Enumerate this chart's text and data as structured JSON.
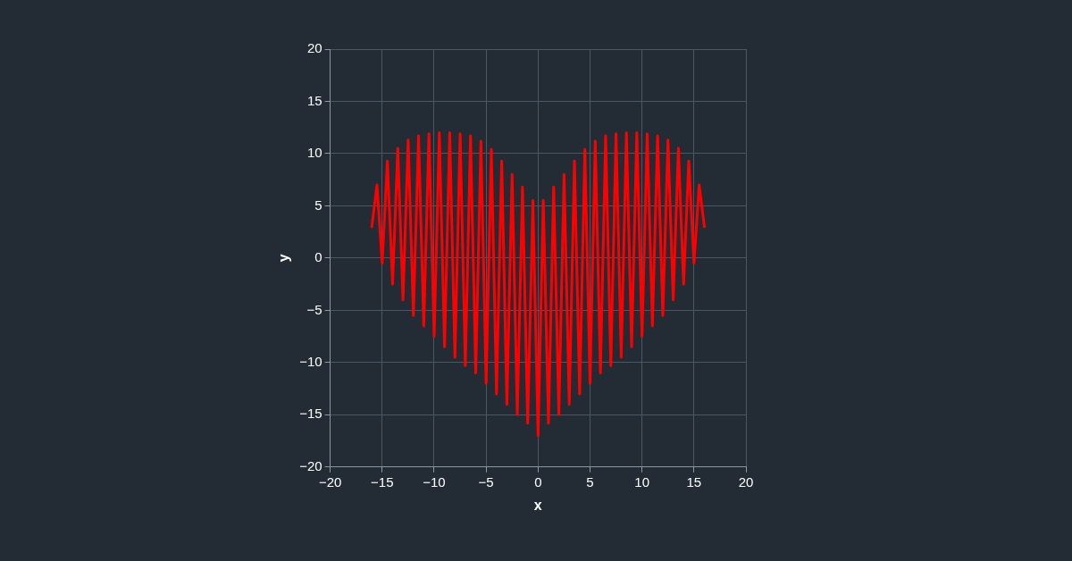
{
  "chart_data": {
    "type": "line",
    "xlabel": "x",
    "ylabel": "y",
    "x": [
      -16,
      -15.5,
      -15,
      -14.5,
      -14,
      -13.5,
      -13,
      -12.5,
      -12,
      -11.5,
      -11,
      -10.5,
      -10,
      -9.5,
      -9,
      -8.5,
      -8,
      -7.5,
      -7,
      -6.5,
      -6,
      -5.5,
      -5,
      -4.5,
      -4,
      -3.5,
      -3,
      -2.5,
      -2,
      -1.5,
      -1,
      -0.5,
      0,
      0.5,
      1,
      1.5,
      2,
      2.5,
      3,
      3.5,
      4,
      4.5,
      5,
      5.5,
      6,
      6.5,
      7,
      7.5,
      8,
      8.5,
      9,
      9.5,
      10,
      10.5,
      11,
      11.5,
      12,
      12.5,
      13,
      13.5,
      14,
      14.5,
      15,
      15.5,
      16
    ],
    "series": [
      {
        "color": "#ff0000",
        "values": [
          3,
          7,
          -0.5,
          9.3,
          -2.5,
          10.5,
          -4,
          11.3,
          -5.5,
          11.7,
          -6.5,
          11.9,
          -7.5,
          12,
          -8.5,
          12,
          -9.5,
          11.9,
          -10.3,
          11.7,
          -11,
          11.2,
          -12,
          10.4,
          -13,
          9.3,
          -14,
          8,
          -15,
          6.8,
          -15.8,
          5.5,
          -17,
          5.5,
          -15.8,
          6.8,
          -15,
          8,
          -14,
          9.3,
          -13,
          10.4,
          -12,
          11.2,
          -11,
          11.7,
          -10.3,
          11.9,
          -9.5,
          12,
          -8.5,
          12,
          -7.5,
          11.9,
          -6.5,
          11.7,
          -5.5,
          11.3,
          -4,
          10.5,
          -2.5,
          9.3,
          -0.5,
          7,
          3
        ]
      }
    ],
    "xlim": [
      -20,
      20
    ],
    "ylim": [
      -20,
      20
    ],
    "xticks": [
      {
        "value": -20,
        "label": "−20"
      },
      {
        "value": -15,
        "label": "−15"
      },
      {
        "value": -10,
        "label": "−10"
      },
      {
        "value": -5,
        "label": "−5"
      },
      0,
      5,
      10,
      15,
      20
    ],
    "yticks": [
      {
        "value": -20,
        "label": "−20"
      },
      {
        "value": -15,
        "label": "−15"
      },
      {
        "value": -10,
        "label": "−10"
      },
      {
        "value": -5,
        "label": "−5"
      },
      0,
      5,
      10,
      15,
      20
    ],
    "grid": true,
    "marker": "none",
    "line_style": "solid"
  }
}
